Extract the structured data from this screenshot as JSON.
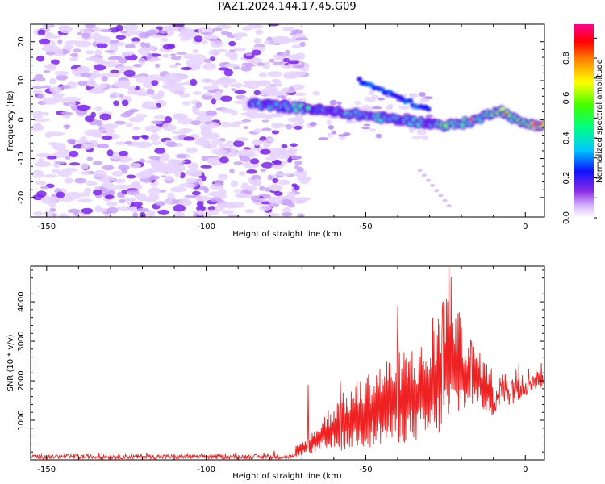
{
  "title": "PAZ1.2024.144.17.45.G09",
  "chart_data": [
    {
      "type": "heatmap",
      "xlabel": "Height of straight line (km)",
      "ylabel": "Frequency (Hz)",
      "xlim": [
        -155,
        6
      ],
      "ylim": [
        -25,
        24.5
      ],
      "xticks": [
        -150,
        -100,
        -50,
        0
      ],
      "yticks": [
        -20,
        -10,
        0,
        10,
        20
      ],
      "colorbar": {
        "label": "Normalized spectral amplitude",
        "range": [
          0.0,
          0.97
        ],
        "ticks": [
          0.0,
          0.2,
          0.4,
          0.6,
          0.8
        ],
        "colormap": "rainbow (white-purple-blue-cyan-green-yellow-red-magenta)"
      },
      "features": {
        "noise_region_x": [
          -150,
          -70
        ],
        "noise_level": 0.1,
        "signal_trace": {
          "x": [
            -85,
            -78,
            -70,
            -65,
            -60,
            -55,
            -50,
            -45,
            -40,
            -35,
            -30,
            -25,
            -20,
            -15,
            -10,
            -8,
            -5,
            -2,
            0,
            5
          ],
          "freq_hz": [
            4,
            3.5,
            3,
            2.5,
            2,
            1.5,
            1,
            0.5,
            0,
            -0.5,
            -1,
            -1.5,
            -1,
            0,
            2,
            2.5,
            1,
            -0.5,
            -1,
            -1.5
          ],
          "amplitude": [
            0.35,
            0.3,
            0.5,
            0.3,
            0.35,
            0.45,
            0.4,
            0.45,
            0.35,
            0.4,
            0.3,
            0.6,
            0.55,
            0.45,
            0.6,
            0.75,
            0.5,
            0.6,
            0.75,
            0.8
          ]
        }
      }
    },
    {
      "type": "line",
      "xlabel": "Height of straight line (km)",
      "ylabel": "SNR (10 * v/v)",
      "xlim": [
        -155,
        6
      ],
      "ylim": [
        0,
        4900
      ],
      "xticks": [
        -150,
        -100,
        -50,
        0
      ],
      "yticks": [
        1000,
        2000,
        3000,
        4000
      ],
      "series": [
        {
          "color": "#ee2222",
          "envelope_x": [
            -155,
            -80,
            -72,
            -68,
            -60,
            -50,
            -40,
            -30,
            -24,
            -20,
            -15,
            -10,
            0,
            6
          ],
          "envelope_lo": [
            20,
            20,
            80,
            150,
            200,
            300,
            400,
            500,
            700,
            1200,
            1400,
            1000,
            1500,
            1800
          ],
          "envelope_hi": [
            200,
            300,
            350,
            600,
            1500,
            2200,
            2800,
            3000,
            4900,
            3500,
            2800,
            2300,
            2500,
            2300
          ],
          "peaks": [
            [
              -68,
              1900
            ],
            [
              -58,
              2000
            ],
            [
              -40,
              3900
            ],
            [
              -29,
              3600
            ],
            [
              -26,
              3900
            ],
            [
              -24,
              4900
            ],
            [
              -17,
              3000
            ],
            [
              -2,
              2450
            ],
            [
              5,
              2450
            ]
          ]
        }
      ]
    }
  ]
}
